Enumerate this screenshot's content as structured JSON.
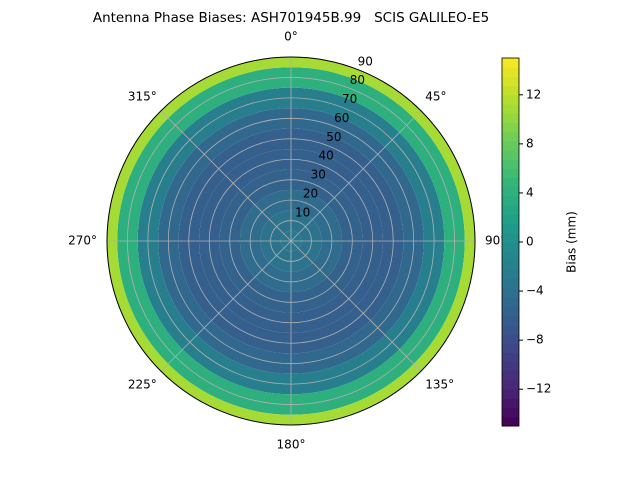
{
  "chart_data": {
    "type": "polar_contour",
    "title": "Antenna Phase Biases: ASH701945B.99   SCIS GALILEO-E5",
    "x": [
      0,
      10,
      20,
      30,
      40,
      50,
      60,
      70,
      80,
      90
    ],
    "values": [
      -3,
      -3.5,
      -4.5,
      -5.5,
      -6,
      -6,
      -5,
      -2,
      4,
      11
    ],
    "ylim": [
      0,
      90
    ],
    "yticks": [
      10,
      20,
      30,
      40,
      50,
      60,
      70,
      80,
      90
    ],
    "xticks": [
      {
        "value": 0,
        "label": "0°"
      },
      {
        "value": 45,
        "label": "45°"
      },
      {
        "value": 90,
        "label": "90°"
      },
      {
        "value": 135,
        "label": "135°"
      },
      {
        "value": 180,
        "label": "180°"
      },
      {
        "value": 225,
        "label": "225°"
      },
      {
        "value": 270,
        "label": "270°"
      },
      {
        "value": 315,
        "label": "315°"
      }
    ],
    "colormap": "viridis",
    "grid": true,
    "colorbar": {
      "label": "Bias (mm)",
      "lim": [
        -15,
        15
      ],
      "ticks": [
        {
          "value": -12,
          "label": "−12"
        },
        {
          "value": -8,
          "label": "−8"
        },
        {
          "value": -4,
          "label": "−4"
        },
        0,
        4,
        8,
        12
      ]
    }
  }
}
